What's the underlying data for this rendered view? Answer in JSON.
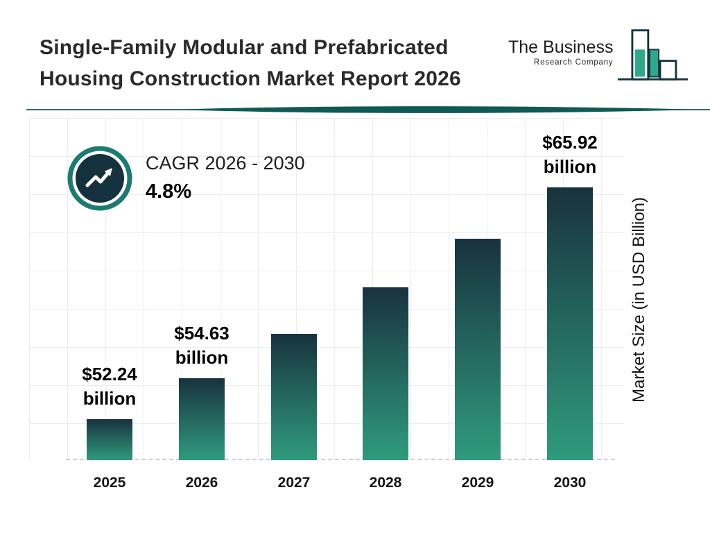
{
  "header": {
    "title_line1": "Single-Family Modular and Prefabricated",
    "title_line2": "Housing Construction Market Report 2026",
    "logo": {
      "name": "The Business",
      "subtitle": "Research Company"
    }
  },
  "cagr": {
    "label": "CAGR 2026 - 2030",
    "value": "4.8%"
  },
  "chart_data": {
    "type": "bar",
    "title": "Single-Family Modular and Prefabricated Housing Construction Market Report 2026",
    "categories": [
      "2025",
      "2026",
      "2027",
      "2028",
      "2029",
      "2030"
    ],
    "values": [
      52.24,
      54.63,
      57.25,
      60.0,
      62.88,
      65.92
    ],
    "labels": [
      {
        "amount": "$52.24",
        "unit": "billion"
      },
      {
        "amount": "$54.63",
        "unit": "billion"
      },
      null,
      null,
      null,
      {
        "amount": "$65.92",
        "unit": "billion"
      }
    ],
    "xlabel": "",
    "ylabel": "Market Size (in USD Billion)",
    "ylim": [
      49.8,
      70
    ],
    "grid": true,
    "legend": false
  },
  "colors": {
    "navy": "#14333f",
    "teal": "#2fa98c",
    "ring": "#1c7b70",
    "badge": "#15313d",
    "divider": "#0e5a55",
    "bar_top": "#18323e",
    "bar_bottom": "#2f9b7d",
    "grid": "#ececec"
  }
}
